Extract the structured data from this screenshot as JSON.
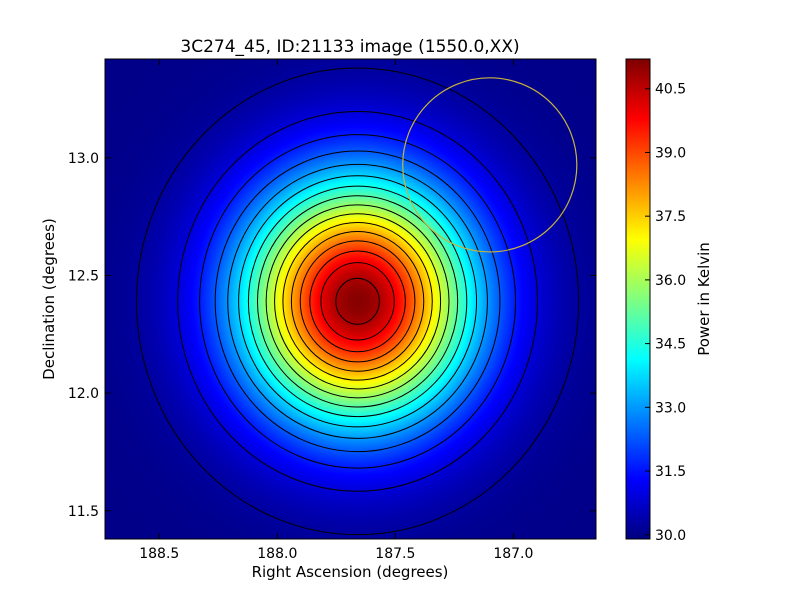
{
  "chart_data": {
    "type": "heatmap",
    "title": "3C274_45, ID:21133 image (1550.0,XX)",
    "xlabel": "Right Ascension (degrees)",
    "ylabel": "Declination (degrees)",
    "xlim": [
      188.73,
      186.65
    ],
    "ylim": [
      11.38,
      13.42
    ],
    "x_ticks": [
      {
        "value": 188.5,
        "label": "188.5"
      },
      {
        "value": 188.0,
        "label": "188.0"
      },
      {
        "value": 187.5,
        "label": "187.5"
      },
      {
        "value": 187.0,
        "label": "187.0"
      }
    ],
    "y_ticks": [
      {
        "value": 11.5,
        "label": "11.5"
      },
      {
        "value": 12.0,
        "label": "12.0"
      },
      {
        "value": 12.5,
        "label": "12.5"
      },
      {
        "value": 13.0,
        "label": "13.0"
      }
    ],
    "colorbar": {
      "label": "Power in Kelvin",
      "min": 29.9,
      "max": 41.2,
      "colormap": "jet",
      "ticks": [
        {
          "value": 30.0,
          "label": "30.0"
        },
        {
          "value": 31.5,
          "label": "31.5"
        },
        {
          "value": 33.0,
          "label": "33.0"
        },
        {
          "value": 34.5,
          "label": "34.5"
        },
        {
          "value": 36.0,
          "label": "36.0"
        },
        {
          "value": 37.5,
          "label": "37.5"
        },
        {
          "value": 39.0,
          "label": "39.0"
        },
        {
          "value": 40.5,
          "label": "40.5"
        }
      ]
    },
    "peak": {
      "ra": 187.66,
      "dec": 12.39,
      "value": 41.1
    },
    "background_value": 30.0,
    "beam_sigma_ra": 0.34,
    "beam_sigma_dec": 0.36,
    "contour_levels": [
      30.25,
      30.9,
      31.6,
      32.3,
      33.0,
      33.7,
      34.4,
      35.1,
      35.8,
      36.5,
      37.2,
      37.9,
      38.6,
      39.3,
      40.0,
      40.7
    ],
    "contour_color": "#000000",
    "circle_overlay": {
      "ra": 187.1,
      "dec": 12.97,
      "radius": 0.37,
      "color": "#c8b43c"
    },
    "grid": false
  }
}
